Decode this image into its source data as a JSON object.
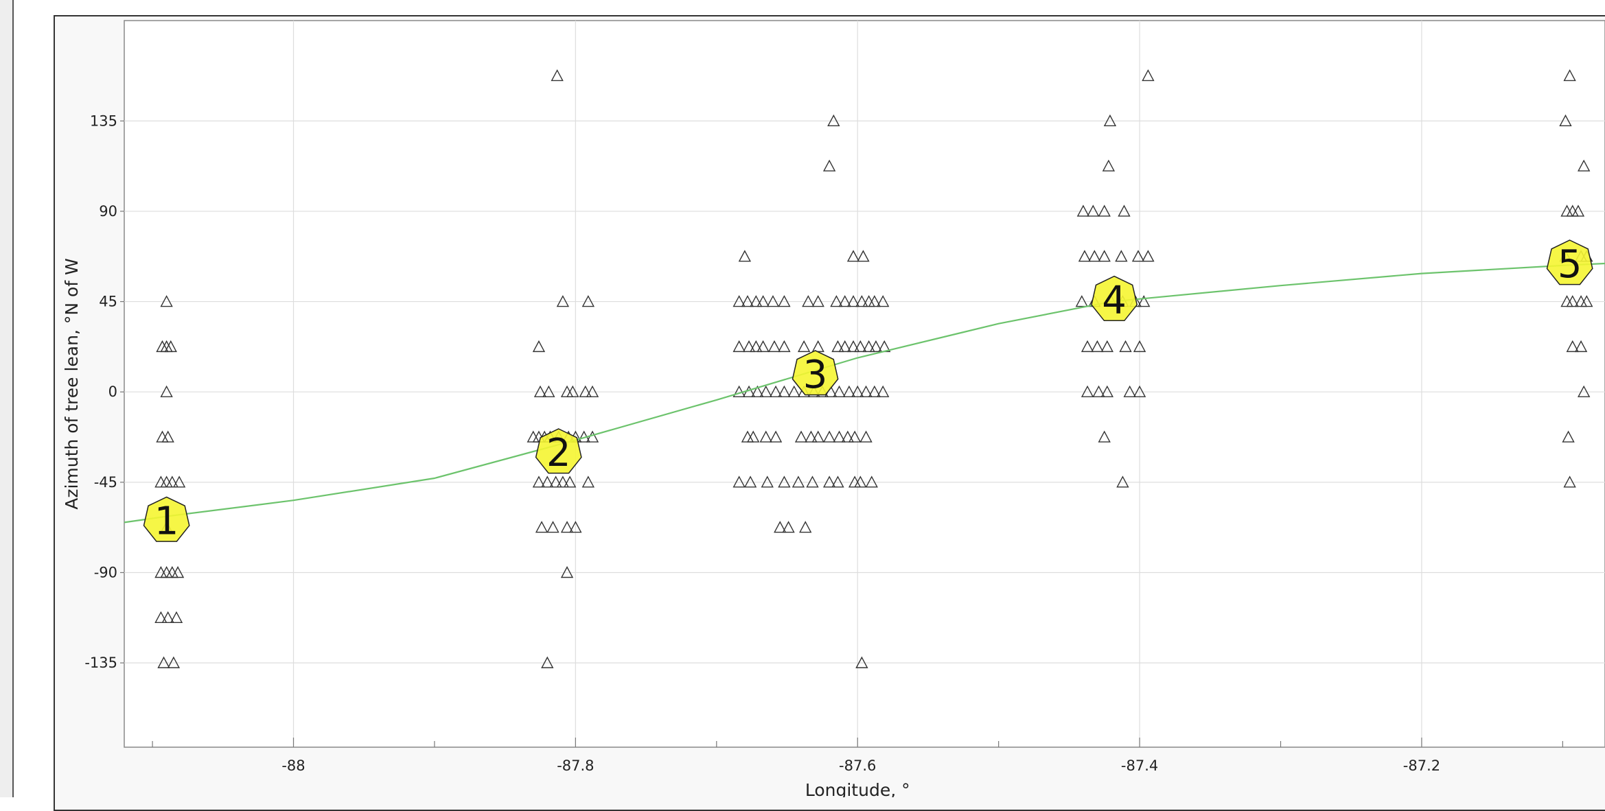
{
  "chart_data": {
    "type": "scatter",
    "title": "",
    "xlabel": "Longitude, °",
    "ylabel": "Azimuth of tree lean, °N of W",
    "xlim": [
      -88.12,
      -87.07
    ],
    "ylim": [
      -177,
      185
    ],
    "x_ticks": [
      -88,
      -87.8,
      -87.6,
      -87.4,
      -87.2
    ],
    "y_ticks": [
      -135,
      -90,
      -45,
      0,
      45,
      90,
      135
    ],
    "x_tick_labels": [
      "-88",
      "-87.8",
      "-87.6",
      "-87.4",
      "-87.2"
    ],
    "y_tick_labels": [
      "-135",
      "-90",
      "-45",
      "0",
      "45",
      "90",
      "135"
    ],
    "grid": true,
    "marker": "triangle-open",
    "colors": {
      "points": "#333333",
      "curve": "#6cc36c",
      "badge": "#f5f532",
      "grid": "#dddddd"
    },
    "series": [
      {
        "points": [
          [
            -88.09,
            45
          ],
          [
            -88.093,
            22.5
          ],
          [
            -88.09,
            22.5
          ],
          [
            -88.087,
            22.5
          ],
          [
            -88.09,
            0
          ],
          [
            -88.093,
            -22.5
          ],
          [
            -88.089,
            -22.5
          ],
          [
            -88.094,
            -45
          ],
          [
            -88.09,
            -45
          ],
          [
            -88.086,
            -45
          ],
          [
            -88.081,
            -45
          ],
          [
            -88.09,
            -67.5
          ],
          [
            -88.094,
            -90
          ],
          [
            -88.09,
            -90
          ],
          [
            -88.086,
            -90
          ],
          [
            -88.082,
            -90
          ],
          [
            -88.094,
            -112.5
          ],
          [
            -88.089,
            -112.5
          ],
          [
            -88.083,
            -112.5
          ],
          [
            -88.092,
            -135
          ],
          [
            -88.085,
            -135
          ],
          [
            -87.813,
            157.5
          ],
          [
            -87.809,
            45
          ],
          [
            -87.791,
            45
          ],
          [
            -87.826,
            22.5
          ],
          [
            -87.825,
            0
          ],
          [
            -87.819,
            0
          ],
          [
            -87.806,
            0
          ],
          [
            -87.802,
            0
          ],
          [
            -87.793,
            0
          ],
          [
            -87.788,
            0
          ],
          [
            -87.83,
            -22.5
          ],
          [
            -87.826,
            -22.5
          ],
          [
            -87.822,
            -22.5
          ],
          [
            -87.818,
            -22.5
          ],
          [
            -87.812,
            -22.5
          ],
          [
            -87.805,
            -22.5
          ],
          [
            -87.8,
            -22.5
          ],
          [
            -87.794,
            -22.5
          ],
          [
            -87.788,
            -22.5
          ],
          [
            -87.826,
            -45
          ],
          [
            -87.82,
            -45
          ],
          [
            -87.814,
            -45
          ],
          [
            -87.809,
            -45
          ],
          [
            -87.804,
            -45
          ],
          [
            -87.791,
            -45
          ],
          [
            -87.824,
            -67.5
          ],
          [
            -87.816,
            -67.5
          ],
          [
            -87.806,
            -67.5
          ],
          [
            -87.8,
            -67.5
          ],
          [
            -87.806,
            -90
          ],
          [
            -87.82,
            -135
          ],
          [
            -87.617,
            135
          ],
          [
            -87.62,
            112.5
          ],
          [
            -87.68,
            67.5
          ],
          [
            -87.603,
            67.5
          ],
          [
            -87.596,
            67.5
          ],
          [
            -87.684,
            45
          ],
          [
            -87.678,
            45
          ],
          [
            -87.672,
            45
          ],
          [
            -87.667,
            45
          ],
          [
            -87.66,
            45
          ],
          [
            -87.652,
            45
          ],
          [
            -87.635,
            45
          ],
          [
            -87.628,
            45
          ],
          [
            -87.615,
            45
          ],
          [
            -87.609,
            45
          ],
          [
            -87.603,
            45
          ],
          [
            -87.597,
            45
          ],
          [
            -87.592,
            45
          ],
          [
            -87.588,
            45
          ],
          [
            -87.582,
            45
          ],
          [
            -87.684,
            22.5
          ],
          [
            -87.677,
            22.5
          ],
          [
            -87.672,
            22.5
          ],
          [
            -87.667,
            22.5
          ],
          [
            -87.659,
            22.5
          ],
          [
            -87.652,
            22.5
          ],
          [
            -87.638,
            22.5
          ],
          [
            -87.628,
            22.5
          ],
          [
            -87.614,
            22.5
          ],
          [
            -87.609,
            22.5
          ],
          [
            -87.603,
            22.5
          ],
          [
            -87.598,
            22.5
          ],
          [
            -87.592,
            22.5
          ],
          [
            -87.587,
            22.5
          ],
          [
            -87.581,
            22.5
          ],
          [
            -87.684,
            0
          ],
          [
            -87.677,
            0
          ],
          [
            -87.671,
            0
          ],
          [
            -87.665,
            0
          ],
          [
            -87.658,
            0
          ],
          [
            -87.652,
            0
          ],
          [
            -87.645,
            0
          ],
          [
            -87.638,
            0
          ],
          [
            -87.631,
            0
          ],
          [
            -87.625,
            0
          ],
          [
            -87.619,
            0
          ],
          [
            -87.613,
            0
          ],
          [
            -87.606,
            0
          ],
          [
            -87.6,
            0
          ],
          [
            -87.594,
            0
          ],
          [
            -87.588,
            0
          ],
          [
            -87.582,
            0
          ],
          [
            -87.678,
            -22.5
          ],
          [
            -87.674,
            -22.5
          ],
          [
            -87.665,
            -22.5
          ],
          [
            -87.658,
            -22.5
          ],
          [
            -87.64,
            -22.5
          ],
          [
            -87.633,
            -22.5
          ],
          [
            -87.628,
            -22.5
          ],
          [
            -87.62,
            -22.5
          ],
          [
            -87.613,
            -22.5
          ],
          [
            -87.607,
            -22.5
          ],
          [
            -87.602,
            -22.5
          ],
          [
            -87.594,
            -22.5
          ],
          [
            -87.684,
            -45
          ],
          [
            -87.676,
            -45
          ],
          [
            -87.664,
            -45
          ],
          [
            -87.652,
            -45
          ],
          [
            -87.642,
            -45
          ],
          [
            -87.632,
            -45
          ],
          [
            -87.62,
            -45
          ],
          [
            -87.614,
            -45
          ],
          [
            -87.602,
            -45
          ],
          [
            -87.598,
            -45
          ],
          [
            -87.59,
            -45
          ],
          [
            -87.655,
            -67.5
          ],
          [
            -87.649,
            -67.5
          ],
          [
            -87.637,
            -67.5
          ],
          [
            -87.597,
            -135
          ],
          [
            -87.394,
            157.5
          ],
          [
            -87.421,
            135
          ],
          [
            -87.422,
            112.5
          ],
          [
            -87.44,
            90
          ],
          [
            -87.433,
            90
          ],
          [
            -87.425,
            90
          ],
          [
            -87.411,
            90
          ],
          [
            -87.439,
            67.5
          ],
          [
            -87.432,
            67.5
          ],
          [
            -87.425,
            67.5
          ],
          [
            -87.413,
            67.5
          ],
          [
            -87.401,
            67.5
          ],
          [
            -87.394,
            67.5
          ],
          [
            -87.441,
            45
          ],
          [
            -87.432,
            45
          ],
          [
            -87.42,
            45
          ],
          [
            -87.412,
            45
          ],
          [
            -87.403,
            45
          ],
          [
            -87.397,
            45
          ],
          [
            -87.437,
            22.5
          ],
          [
            -87.43,
            22.5
          ],
          [
            -87.423,
            22.5
          ],
          [
            -87.41,
            22.5
          ],
          [
            -87.4,
            22.5
          ],
          [
            -87.437,
            0
          ],
          [
            -87.429,
            0
          ],
          [
            -87.423,
            0
          ],
          [
            -87.407,
            0
          ],
          [
            -87.4,
            0
          ],
          [
            -87.425,
            -22.5
          ],
          [
            -87.412,
            -45
          ],
          [
            -87.095,
            157.5
          ],
          [
            -87.098,
            135
          ],
          [
            -87.085,
            112.5
          ],
          [
            -87.097,
            90
          ],
          [
            -87.093,
            90
          ],
          [
            -87.089,
            90
          ],
          [
            -87.098,
            67.5
          ],
          [
            -87.087,
            67.5
          ],
          [
            -87.083,
            67.5
          ],
          [
            -87.097,
            45
          ],
          [
            -87.093,
            45
          ],
          [
            -87.087,
            45
          ],
          [
            -87.083,
            45
          ],
          [
            -87.093,
            22.5
          ],
          [
            -87.087,
            22.5
          ],
          [
            -87.085,
            0
          ],
          [
            -87.096,
            -22.5
          ],
          [
            -87.095,
            -45
          ]
        ]
      },
      {
        "type": "line",
        "x": [
          -88.12,
          -88.09,
          -88.0,
          -87.9,
          -87.8,
          -87.7,
          -87.6,
          -87.5,
          -87.42,
          -87.3,
          -87.2,
          -87.1,
          -87.07
        ],
        "y": [
          -65,
          -62,
          -54,
          -43,
          -24,
          -4,
          17,
          34,
          45,
          53,
          59,
          63,
          64
        ]
      }
    ],
    "annotations": [
      {
        "label": "1",
        "x": -88.09,
        "y": -64
      },
      {
        "label": "2",
        "x": -87.812,
        "y": -30
      },
      {
        "label": "3",
        "x": -87.63,
        "y": 9
      },
      {
        "label": "4",
        "x": -87.418,
        "y": 46
      },
      {
        "label": "5",
        "x": -87.095,
        "y": 64
      }
    ]
  }
}
